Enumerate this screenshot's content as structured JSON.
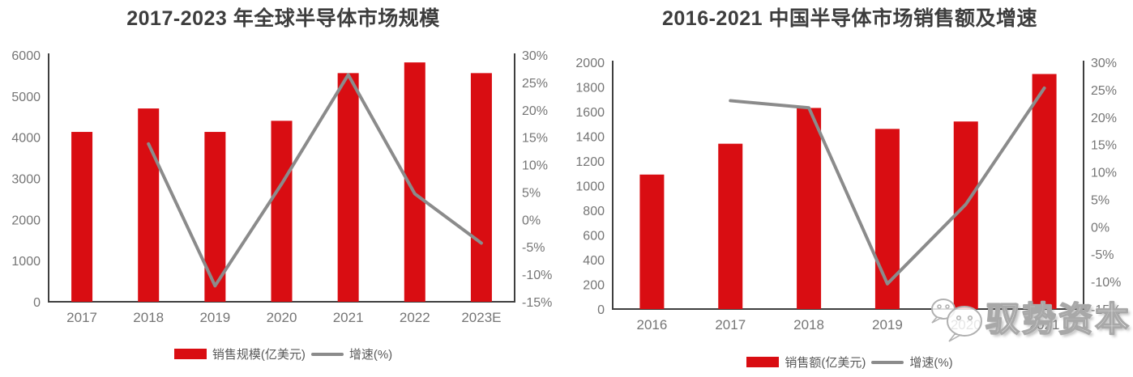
{
  "colors": {
    "bar_red": "#d90d12",
    "growth_line_gray": "#8b8b8b",
    "axis_gray": "#3f3f3f",
    "tick_label_gray": "#757575",
    "title_gray": "#3d3d3d",
    "legend_text_gray": "#595959",
    "watermark_gray": "#a8a8a8"
  },
  "charts": [
    {
      "title": "2017-2023 年全球半导体市场规模",
      "legend": {
        "bar_label": "销售规模(亿美元)",
        "line_label": "增速(%)"
      },
      "chart_data": {
        "type": "bar+line",
        "categories": [
          "2017",
          "2018",
          "2019",
          "2020",
          "2021",
          "2022",
          "2023E"
        ],
        "series": [
          {
            "name": "销售规模(亿美元)",
            "type": "bar",
            "axis": "left",
            "values": [
              4130,
              4700,
              4130,
              4400,
              5560,
              5820,
              5560
            ]
          },
          {
            "name": "增速(%)",
            "type": "line",
            "axis": "right",
            "values": [
              null,
              13.8,
              -12.1,
              6.5,
              26.4,
              4.7,
              -4.3
            ]
          }
        ],
        "left_axis": {
          "min": 0,
          "max": 6000,
          "step": 1000
        },
        "right_axis": {
          "min": -15,
          "max": 30,
          "step": 5,
          "unit": "%"
        },
        "grid": false,
        "legend_position": "bottom"
      }
    },
    {
      "title": "2016-2021 中国半导体市场销售额及增速",
      "legend": {
        "bar_label": "销售额(亿美元)",
        "line_label": "增速(%)"
      },
      "chart_data": {
        "type": "bar+line",
        "categories": [
          "2016",
          "2017",
          "2018",
          "2019",
          "2020",
          "2021"
        ],
        "series": [
          {
            "name": "销售额(亿美元)",
            "type": "bar",
            "axis": "left",
            "values": [
              1090,
              1340,
              1630,
              1460,
              1520,
              1905
            ]
          },
          {
            "name": "增速(%)",
            "type": "line",
            "axis": "right",
            "values": [
              null,
              23.0,
              21.7,
              -10.4,
              4.1,
              25.3
            ]
          }
        ],
        "left_axis": {
          "min": 0,
          "max": 2000,
          "step": 200
        },
        "right_axis": {
          "min": -15,
          "max": 30,
          "step": 5,
          "unit": "%"
        },
        "grid": false,
        "legend_position": "bottom"
      }
    }
  ],
  "watermark": {
    "icon": "wechat-bubbles-icon",
    "text": "驭势资本"
  }
}
